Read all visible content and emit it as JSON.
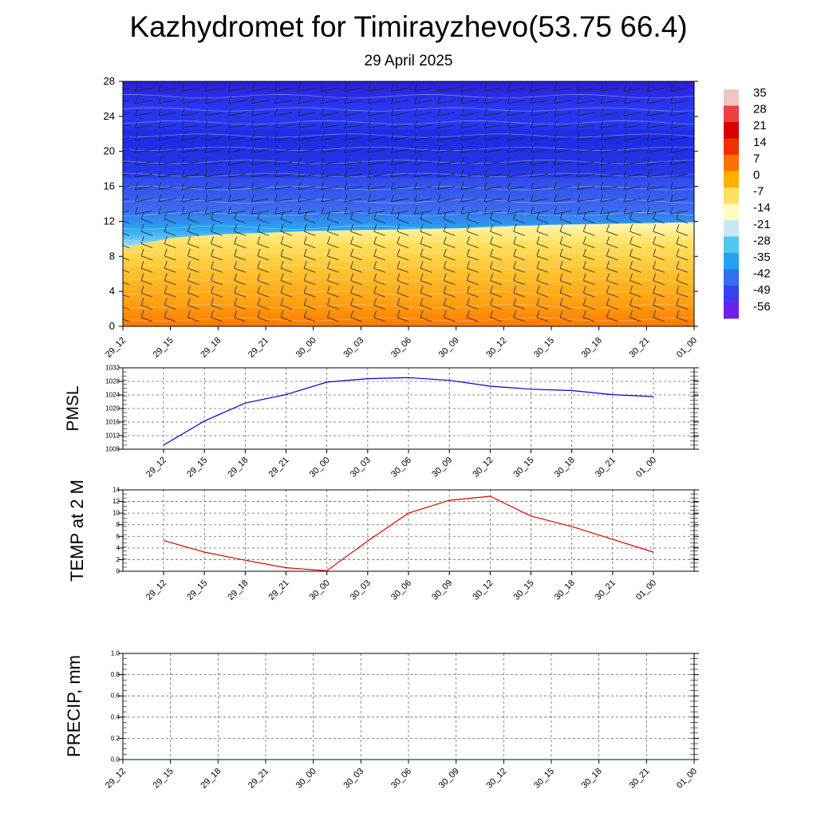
{
  "title": "Kazhydromet for Timirayzhevo(53.75 66.4)",
  "subtitle": "29 April 2025",
  "chart_data": [
    {
      "type": "heatmap",
      "x_tick_labels": [
        "29_12",
        "29_15",
        "29_18",
        "29_21",
        "30_00",
        "30_03",
        "30_06",
        "30_09",
        "30_12",
        "30_15",
        "30_18",
        "30_21",
        "01_00"
      ],
      "y_tick_labels": [
        "0",
        "4",
        "8",
        "12",
        "16",
        "20",
        "24",
        "28"
      ],
      "ylim": [
        0,
        28
      ],
      "colorbar_labels": [
        "35",
        "28",
        "21",
        "14",
        "7",
        "0",
        "-7",
        "-14",
        "-21",
        "-28",
        "-35",
        "-42",
        "-49",
        "-56"
      ],
      "colorbar_colors": [
        "#f2c4c4",
        "#ea4040",
        "#d80000",
        "#ee3000",
        "#ff7000",
        "#ffb000",
        "#ffe060",
        "#fffcc0",
        "#c8e8f8",
        "#50c8f0",
        "#28a0f0",
        "#3070f0",
        "#3a40f0",
        "#7020e8"
      ],
      "freezing_level": [
        8.9,
        10.1,
        10.5,
        10.7,
        10.9,
        11.0,
        11.1,
        11.2,
        11.4,
        11.6,
        11.7,
        11.8,
        11.9
      ]
    },
    {
      "type": "line",
      "ylabel": "PMSL",
      "categories": [
        "29_12",
        "29_15",
        "29_18",
        "29_21",
        "30_00",
        "30_03",
        "30_06",
        "30_09",
        "30_12",
        "30_15",
        "30_18",
        "30_21",
        "01_00"
      ],
      "ylim": [
        1008,
        1032
      ],
      "y_tick_labels": [
        "1008",
        "1012",
        "1016",
        "1020",
        "1024",
        "1028",
        "1032"
      ],
      "series": [
        {
          "values": [
            1009.2,
            1016.3,
            1021.6,
            1024.1,
            1027.8,
            1028.8,
            1029.1,
            1028.3,
            1026.6,
            1025.7,
            1025.3,
            1024.1,
            1023.5
          ],
          "color": "#0000cc"
        }
      ]
    },
    {
      "type": "line",
      "ylabel": "TEMP at 2 M",
      "categories": [
        "29_12",
        "29_15",
        "29_18",
        "29_21",
        "30_00",
        "30_03",
        "30_06",
        "30_09",
        "30_12",
        "30_15",
        "30_18",
        "30_21",
        "01_00"
      ],
      "ylim": [
        0,
        14
      ],
      "y_tick_labels": [
        "0",
        "2",
        "4",
        "6",
        "8",
        "10",
        "12",
        "14"
      ],
      "series": [
        {
          "values": [
            5.3,
            3.3,
            1.9,
            0.6,
            0.1,
            5.2,
            10.0,
            12.2,
            12.9,
            9.5,
            7.7,
            5.5,
            3.3
          ],
          "color": "#e00000"
        }
      ]
    },
    {
      "type": "line",
      "ylabel": "PRECIP, mm",
      "categories": [
        "29_12",
        "29_15",
        "29_18",
        "29_21",
        "30_00",
        "30_03",
        "30_06",
        "30_09",
        "30_12",
        "30_15",
        "30_18",
        "30_21",
        "01_00"
      ],
      "ylim": [
        0,
        1
      ],
      "y_tick_labels": [
        "0.0",
        "0.2",
        "0.4",
        "0.6",
        "0.8",
        "1.0"
      ],
      "series": [
        {
          "values": [
            0,
            0,
            0,
            0,
            0,
            0,
            0,
            0,
            0,
            0,
            0,
            0,
            0
          ],
          "color": "#006400"
        }
      ]
    }
  ]
}
